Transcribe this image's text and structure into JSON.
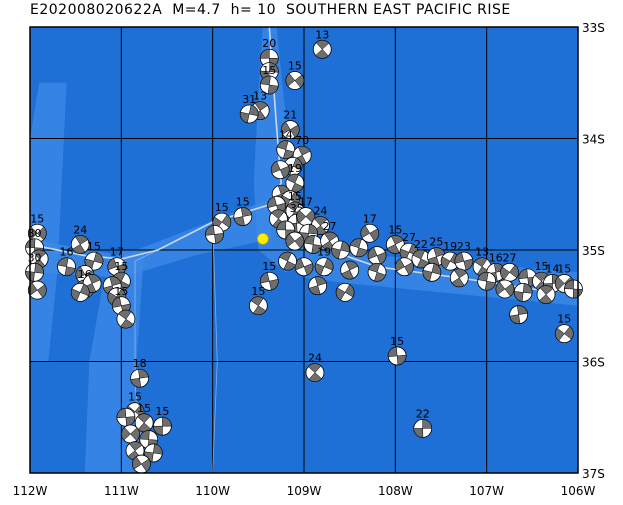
{
  "title": "E202008020622A  M=4.7  h= 10  SOUTHERN EAST PACIFIC RISE",
  "lon_labels": [
    "112W",
    "111W",
    "110W",
    "109W",
    "108W",
    "107W",
    "106W"
  ],
  "lat_labels": [
    "33S",
    "34S",
    "35S",
    "36S",
    "37S"
  ],
  "lon_range": [
    -112,
    -106
  ],
  "lat_range": [
    -37,
    -33
  ],
  "colors": {
    "ocean": "#1e6fd6",
    "shallow": "#3d8ae8",
    "grid": "#000000",
    "ridge": "#c8d8ee",
    "star": "#ffee00"
  },
  "epicenter": {
    "lon": -109.45,
    "lat": -34.9
  },
  "events": [
    {
      "lon": -109.38,
      "lat": -33.28,
      "label": "20"
    },
    {
      "lon": -108.8,
      "lat": -33.2,
      "label": "13"
    },
    {
      "lon": -109.38,
      "lat": -33.4,
      "label": ""
    },
    {
      "lon": -109.1,
      "lat": -33.48,
      "label": "15"
    },
    {
      "lon": -109.38,
      "lat": -33.52,
      "label": "15"
    },
    {
      "lon": -109.48,
      "lat": -33.75,
      "label": "13"
    },
    {
      "lon": -109.6,
      "lat": -33.78,
      "label": "31"
    },
    {
      "lon": -109.15,
      "lat": -33.92,
      "label": "21"
    },
    {
      "lon": -109.2,
      "lat": -34.1,
      "label": "14"
    },
    {
      "lon": -109.02,
      "lat": -34.15,
      "label": "70"
    },
    {
      "lon": -109.12,
      "lat": -34.25,
      "label": ""
    },
    {
      "lon": -109.26,
      "lat": -34.28,
      "label": ""
    },
    {
      "lon": -109.1,
      "lat": -34.4,
      "label": "19"
    },
    {
      "lon": -109.25,
      "lat": -34.5,
      "label": ""
    },
    {
      "lon": -109.15,
      "lat": -34.55,
      "label": ""
    },
    {
      "lon": -109.3,
      "lat": -34.6,
      "label": ""
    },
    {
      "lon": -109.1,
      "lat": -34.65,
      "label": "15"
    },
    {
      "lon": -109.67,
      "lat": -34.7,
      "label": "15"
    },
    {
      "lon": -109.9,
      "lat": -34.75,
      "label": "15"
    },
    {
      "lon": -109.98,
      "lat": -34.86,
      "label": ""
    },
    {
      "lon": -109.28,
      "lat": -34.72,
      "label": ""
    },
    {
      "lon": -109.08,
      "lat": -34.76,
      "label": "35"
    },
    {
      "lon": -108.98,
      "lat": -34.7,
      "label": "17"
    },
    {
      "lon": -109.2,
      "lat": -34.82,
      "label": ""
    },
    {
      "lon": -108.82,
      "lat": -34.78,
      "label": "24"
    },
    {
      "lon": -108.95,
      "lat": -34.85,
      "label": ""
    },
    {
      "lon": -109.1,
      "lat": -34.92,
      "label": ""
    },
    {
      "lon": -108.9,
      "lat": -34.95,
      "label": ""
    },
    {
      "lon": -108.72,
      "lat": -34.92,
      "label": "27"
    },
    {
      "lon": -108.6,
      "lat": -35.0,
      "label": ""
    },
    {
      "lon": -108.28,
      "lat": -34.85,
      "label": "17"
    },
    {
      "lon": -108.4,
      "lat": -34.98,
      "label": ""
    },
    {
      "lon": -108.0,
      "lat": -34.95,
      "label": "15"
    },
    {
      "lon": -107.85,
      "lat": -35.02,
      "label": "27"
    },
    {
      "lon": -108.2,
      "lat": -35.05,
      "label": ""
    },
    {
      "lon": -107.72,
      "lat": -35.08,
      "label": "22"
    },
    {
      "lon": -107.55,
      "lat": -35.06,
      "label": "25"
    },
    {
      "lon": -107.4,
      "lat": -35.1,
      "label": "19"
    },
    {
      "lon": -107.25,
      "lat": -35.1,
      "label": "23"
    },
    {
      "lon": -107.05,
      "lat": -35.15,
      "label": "13"
    },
    {
      "lon": -106.9,
      "lat": -35.2,
      "label": "16"
    },
    {
      "lon": -106.75,
      "lat": -35.2,
      "label": "27"
    },
    {
      "lon": -106.55,
      "lat": -35.25,
      "label": ""
    },
    {
      "lon": -106.4,
      "lat": -35.28,
      "label": "15"
    },
    {
      "lon": -106.28,
      "lat": -35.3,
      "label": "14"
    },
    {
      "lon": -106.15,
      "lat": -35.3,
      "label": "15"
    },
    {
      "lon": -106.05,
      "lat": -35.35,
      "label": ""
    },
    {
      "lon": -106.35,
      "lat": -35.4,
      "label": ""
    },
    {
      "lon": -106.6,
      "lat": -35.38,
      "label": ""
    },
    {
      "lon": -106.8,
      "lat": -35.35,
      "label": ""
    },
    {
      "lon": -107.0,
      "lat": -35.28,
      "label": ""
    },
    {
      "lon": -107.3,
      "lat": -35.25,
      "label": ""
    },
    {
      "lon": -107.6,
      "lat": -35.2,
      "label": ""
    },
    {
      "lon": -107.9,
      "lat": -35.15,
      "label": ""
    },
    {
      "lon": -108.2,
      "lat": -35.2,
      "label": ""
    },
    {
      "lon": -108.5,
      "lat": -35.18,
      "label": ""
    },
    {
      "lon": -108.78,
      "lat": -35.15,
      "label": "19"
    },
    {
      "lon": -109.0,
      "lat": -35.15,
      "label": ""
    },
    {
      "lon": -109.18,
      "lat": -35.1,
      "label": ""
    },
    {
      "lon": -108.85,
      "lat": -35.32,
      "label": ""
    },
    {
      "lon": -108.55,
      "lat": -35.38,
      "label": ""
    },
    {
      "lon": -109.38,
      "lat": -35.28,
      "label": "15"
    },
    {
      "lon": -109.5,
      "lat": -35.5,
      "label": "15"
    },
    {
      "lon": -106.65,
      "lat": -35.58,
      "label": ""
    },
    {
      "lon": -106.15,
      "lat": -35.75,
      "label": "15"
    },
    {
      "lon": -107.98,
      "lat": -35.95,
      "label": "15"
    },
    {
      "lon": -108.88,
      "lat": -36.1,
      "label": "24"
    },
    {
      "lon": -107.7,
      "lat": -36.6,
      "label": "22"
    },
    {
      "lon": -111.92,
      "lat": -34.85,
      "label": "15"
    },
    {
      "lon": -111.95,
      "lat": -34.98,
      "label": "30"
    },
    {
      "lon": -111.9,
      "lat": -35.08,
      "label": ""
    },
    {
      "lon": -111.95,
      "lat": -35.2,
      "label": "30"
    },
    {
      "lon": -111.92,
      "lat": -35.36,
      "label": ""
    },
    {
      "lon": -111.6,
      "lat": -35.15,
      "label": "16"
    },
    {
      "lon": -111.45,
      "lat": -34.95,
      "label": "24"
    },
    {
      "lon": -111.3,
      "lat": -35.1,
      "label": "15"
    },
    {
      "lon": -111.4,
      "lat": -35.22,
      "label": ""
    },
    {
      "lon": -111.4,
      "lat": -35.35,
      "label": "16"
    },
    {
      "lon": -111.32,
      "lat": -35.3,
      "label": ""
    },
    {
      "lon": -111.45,
      "lat": -35.38,
      "label": ""
    },
    {
      "lon": -111.05,
      "lat": -35.15,
      "label": "17"
    },
    {
      "lon": -111.0,
      "lat": -35.28,
      "label": "15"
    },
    {
      "lon": -111.1,
      "lat": -35.32,
      "label": ""
    },
    {
      "lon": -111.05,
      "lat": -35.42,
      "label": ""
    },
    {
      "lon": -111.0,
      "lat": -35.5,
      "label": "15"
    },
    {
      "lon": -110.95,
      "lat": -35.62,
      "label": ""
    },
    {
      "lon": -110.8,
      "lat": -36.15,
      "label": "18"
    },
    {
      "lon": -110.85,
      "lat": -36.45,
      "label": "15"
    },
    {
      "lon": -110.95,
      "lat": -36.5,
      "label": ""
    },
    {
      "lon": -110.75,
      "lat": -36.55,
      "label": "15"
    },
    {
      "lon": -110.55,
      "lat": -36.58,
      "label": "15"
    },
    {
      "lon": -110.9,
      "lat": -36.65,
      "label": ""
    },
    {
      "lon": -110.7,
      "lat": -36.7,
      "label": ""
    },
    {
      "lon": -110.85,
      "lat": -36.8,
      "label": ""
    },
    {
      "lon": -110.65,
      "lat": -36.82,
      "label": ""
    },
    {
      "lon": -110.78,
      "lat": -36.92,
      "label": ""
    }
  ]
}
